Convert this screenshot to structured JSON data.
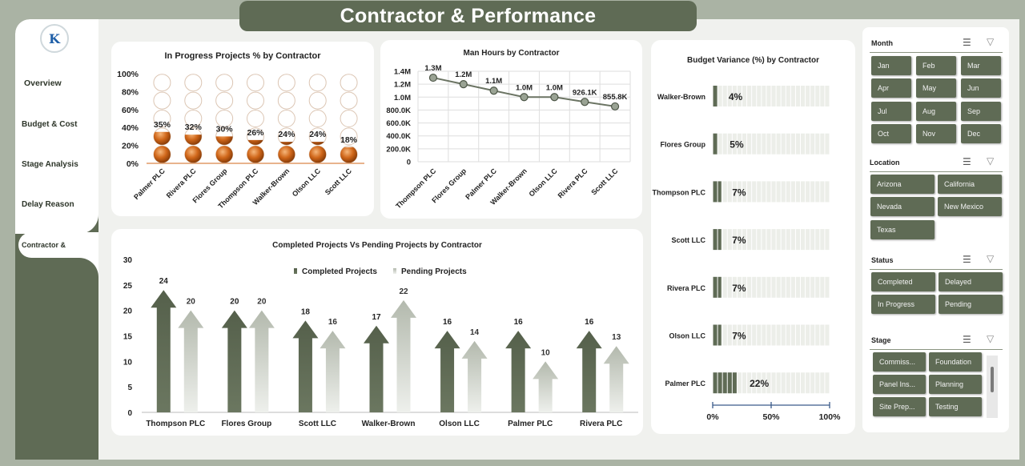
{
  "page_title": "Contractor & Performance",
  "nav": {
    "items": [
      "Overview",
      "Budget & Cost",
      "Stage Analysis",
      "Delay Reason",
      "Contractor &"
    ],
    "active": "Contractor &"
  },
  "logo_text": "K",
  "filters": {
    "month": {
      "title": "Month",
      "options": [
        "Jan",
        "Feb",
        "Mar",
        "Apr",
        "May",
        "Jun",
        "Jul",
        "Aug",
        "Sep",
        "Oct",
        "Nov",
        "Dec"
      ]
    },
    "location": {
      "title": "Location",
      "options": [
        "Arizona",
        "California",
        "Nevada",
        "New Mexico",
        "Texas"
      ]
    },
    "status": {
      "title": "Status",
      "options": [
        "Completed",
        "Delayed",
        "In Progress",
        "Pending"
      ]
    },
    "stage": {
      "title": "Stage",
      "options": [
        "Commiss...",
        "Foundation",
        "Panel Ins...",
        "Planning",
        "Site Prep...",
        "Testing"
      ]
    }
  },
  "colors": {
    "accent": "#5f6b55",
    "orange": "#d0671a",
    "light_gray": "#c9cdc4"
  },
  "chart_data": [
    {
      "type": "bar",
      "title": "In Progress Projects % by Contractor",
      "categories": [
        "Palmer PLC",
        "Rivera PLC",
        "Flores Group",
        "Thompson PLC",
        "Walker-Brown",
        "Olson LLC",
        "Scott LLC"
      ],
      "values": [
        35,
        32,
        30,
        26,
        24,
        24,
        18
      ],
      "labels": [
        "35%",
        "32%",
        "30%",
        "26%",
        "24%",
        "24%",
        "18%"
      ],
      "yticks": [
        "0%",
        "20%",
        "40%",
        "60%",
        "80%",
        "100%"
      ],
      "ylim": [
        0,
        100
      ]
    },
    {
      "type": "line",
      "title": "Man Hours by Contractor",
      "categories": [
        "Thompson PLC",
        "Flores Group",
        "Palmer PLC",
        "Walker-Brown",
        "Olson LLC",
        "Rivera PLC",
        "Scott LLC"
      ],
      "values": [
        1300000,
        1200000,
        1100000,
        1000000,
        1000000,
        926100,
        855800
      ],
      "labels": [
        "1.3M",
        "1.2M",
        "1.1M",
        "1.0M",
        "1.0M",
        "926.1K",
        "855.8K"
      ],
      "yticks": [
        "0",
        "200.0K",
        "400.0K",
        "600.0K",
        "800.0K",
        "1.0M",
        "1.2M",
        "1.4M"
      ],
      "ylim": [
        0,
        1400000
      ]
    },
    {
      "type": "bar",
      "title": "Completed Projects Vs Pending Projects by Contractor",
      "categories": [
        "Thompson PLC",
        "Flores Group",
        "Scott LLC",
        "Walker-Brown",
        "Olson LLC",
        "Palmer PLC",
        "Rivera PLC"
      ],
      "series": [
        {
          "name": "Completed Projects",
          "values": [
            24,
            20,
            18,
            17,
            16,
            16,
            16
          ]
        },
        {
          "name": "Pending Projects",
          "values": [
            20,
            20,
            16,
            22,
            14,
            10,
            13
          ]
        }
      ],
      "yticks": [
        "0",
        "5",
        "10",
        "15",
        "20",
        "25",
        "30"
      ],
      "ylim": [
        0,
        30
      ],
      "legend": "top"
    },
    {
      "type": "bar",
      "title": "Budget Variance (%) by Contractor",
      "categories": [
        "Walker-Brown",
        "Flores Group",
        "Thompson PLC",
        "Scott LLC",
        "Rivera PLC",
        "Olson LLC",
        "Palmer PLC"
      ],
      "values": [
        4,
        5,
        7,
        7,
        7,
        7,
        22
      ],
      "labels": [
        "4%",
        "5%",
        "7%",
        "7%",
        "7%",
        "7%",
        "22%"
      ],
      "xticks": [
        "0%",
        "50%",
        "100%"
      ],
      "xlim": [
        0,
        100
      ]
    }
  ]
}
